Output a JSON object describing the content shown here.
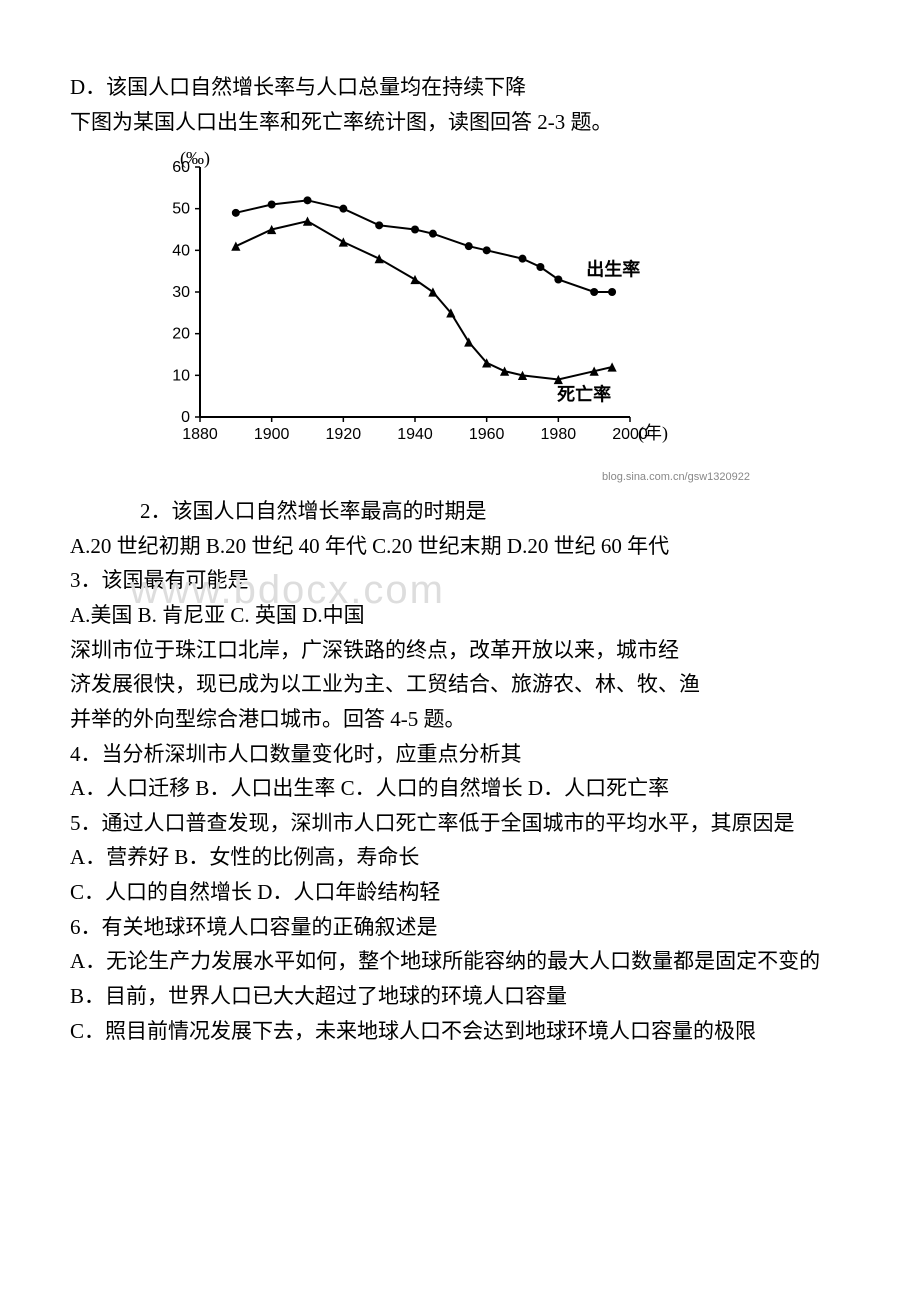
{
  "statements": {
    "d_before_chart": "D．该国人口自然增长率与人口总量均在持续下降",
    "chart_intro": "下图为某国人口出生率和死亡率统计图，读图回答 2-3 题。"
  },
  "chart": {
    "type": "line",
    "y_label": "(‰)",
    "y_label_fontsize": 18,
    "x_label": "(年)",
    "x_label_fontsize": 18,
    "background_color": "#ffffff",
    "axis_color": "#000000",
    "xlim": [
      1880,
      2000
    ],
    "ylim": [
      0,
      60
    ],
    "xticks": [
      1880,
      1900,
      1920,
      1940,
      1960,
      1980,
      2000
    ],
    "yticks": [
      0,
      10,
      20,
      30,
      40,
      50,
      60
    ],
    "series": [
      {
        "name": "出生率",
        "label": "出生率",
        "marker": "circle",
        "marker_size": 6,
        "color": "#000000",
        "line_width": 2,
        "data": [
          {
            "x": 1890,
            "y": 49
          },
          {
            "x": 1900,
            "y": 51
          },
          {
            "x": 1910,
            "y": 52
          },
          {
            "x": 1920,
            "y": 50
          },
          {
            "x": 1930,
            "y": 46
          },
          {
            "x": 1940,
            "y": 45
          },
          {
            "x": 1945,
            "y": 44
          },
          {
            "x": 1955,
            "y": 41
          },
          {
            "x": 1960,
            "y": 40
          },
          {
            "x": 1970,
            "y": 38
          },
          {
            "x": 1975,
            "y": 36
          },
          {
            "x": 1980,
            "y": 33
          },
          {
            "x": 1990,
            "y": 30
          },
          {
            "x": 1995,
            "y": 30
          }
        ]
      },
      {
        "name": "死亡率",
        "label": "死亡率",
        "marker": "triangle",
        "marker_size": 6,
        "color": "#000000",
        "line_width": 2,
        "data": [
          {
            "x": 1890,
            "y": 41
          },
          {
            "x": 1900,
            "y": 45
          },
          {
            "x": 1910,
            "y": 47
          },
          {
            "x": 1920,
            "y": 42
          },
          {
            "x": 1930,
            "y": 38
          },
          {
            "x": 1940,
            "y": 33
          },
          {
            "x": 1945,
            "y": 30
          },
          {
            "x": 1950,
            "y": 25
          },
          {
            "x": 1955,
            "y": 18
          },
          {
            "x": 1960,
            "y": 13
          },
          {
            "x": 1965,
            "y": 11
          },
          {
            "x": 1970,
            "y": 10
          },
          {
            "x": 1980,
            "y": 9
          },
          {
            "x": 1990,
            "y": 11
          },
          {
            "x": 1995,
            "y": 12
          }
        ]
      }
    ],
    "label_fontsize": 18,
    "tick_fontsize": 16,
    "blog_credit": "blog.sina.com.cn/gsw1320922"
  },
  "q2": {
    "stem": "2．该国人口自然增长率最高的时期是",
    "options": " A.20 世纪初期    B.20 世纪 40 年代   C.20 世纪末期    D.20 世纪 60 年代"
  },
  "q3": {
    "stem": "3．该国最有可能是",
    "options": " A.美国        B. 肯尼亚       C. 英国        D.中国"
  },
  "passage45": {
    "line1": " 深圳市位于珠江口北岸，广深铁路的终点，改革开放以来，城市经",
    "line2": " 济发展很快，现已成为以工业为主、工贸结合、旅游农、林、牧、渔",
    "line3": " 并举的外向型综合港口城市。回答 4-5 题。"
  },
  "q4": {
    "stem": "4．当分析深圳市人口数量变化时，应重点分析其",
    "options": " A．人口迁移   B．人口出生率   C．人口的自然增长   D．人口死亡率"
  },
  "q5": {
    "stem": "5．通过人口普查发现，深圳市人口死亡率低于全国城市的平均水平，其原因是",
    "opt_a_b": " A．营养好           B．女性的比例高，寿命长",
    "opt_c_d": " C．人口的自然增长    D．人口年龄结构轻"
  },
  "q6": {
    "stem": "6．有关地球环境人口容量的正确叙述是",
    "opt_a": " A．无论生产力发展水平如何，整个地球所能容纳的最大人口数量都是固定不变的",
    "opt_b": " B．目前，世界人口已大大超过了地球的环境人口容量",
    "opt_c": " C．照目前情况发展下去，未来地球人口不会达到地球环境人口容量的极限"
  },
  "watermark": "www.bdocx.com"
}
